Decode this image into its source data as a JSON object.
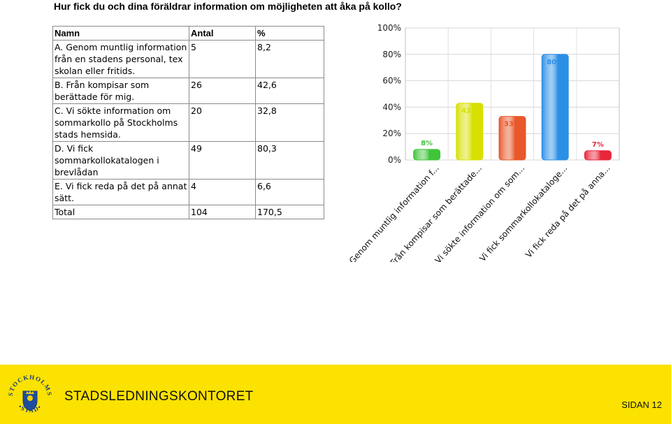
{
  "title": "Hur fick du och dina föräldrar information om möjligheten att åka på kollo?",
  "table": {
    "headers": [
      "Namn",
      "Antal",
      "%"
    ],
    "rows": [
      {
        "name": "A. Genom muntlig information från en stadens personal, tex skolan eller fritids.",
        "count": "5",
        "pct": "8,2"
      },
      {
        "name": "B. Från kompisar som berättade för mig.",
        "count": "26",
        "pct": "42,6"
      },
      {
        "name": "C. Vi sökte information om sommarkollo på Stockholms stads hemsida.",
        "count": "20",
        "pct": "32,8"
      },
      {
        "name": "D. Vi fick sommarkollokatalogen i brevlådan",
        "count": "49",
        "pct": "80,3"
      },
      {
        "name": "E. Vi fick reda på det på annat sätt.",
        "count": "4",
        "pct": "6,6"
      }
    ],
    "total": {
      "name": "Total",
      "count": "104",
      "pct": "170,5"
    }
  },
  "chart_data": {
    "type": "bar",
    "categories": [
      "Genom muntlig information f...",
      "Från kompisar som berättade...",
      "Vi sökte information om som...",
      "Vi fick sommarkollokataloge...",
      "Vi fick reda på det på anna..."
    ],
    "values": [
      8,
      43,
      33,
      80,
      7
    ],
    "value_labels": [
      "8%",
      "43%",
      "33%",
      "80%",
      "7%"
    ],
    "colors": [
      "#3fc43a",
      "#d7e000",
      "#e8582a",
      "#2c8fe6",
      "#e8253a"
    ],
    "yticks": [
      "0%",
      "20%",
      "40%",
      "60%",
      "80%",
      "100%"
    ],
    "ylim": [
      0,
      100
    ],
    "grid": true
  },
  "footer": {
    "org": "STADSLEDNINGSKONTORET",
    "page": "SIDAN 12",
    "logo_text": "STOCKHOLMS STAD",
    "bg_color": "#fbe200"
  }
}
